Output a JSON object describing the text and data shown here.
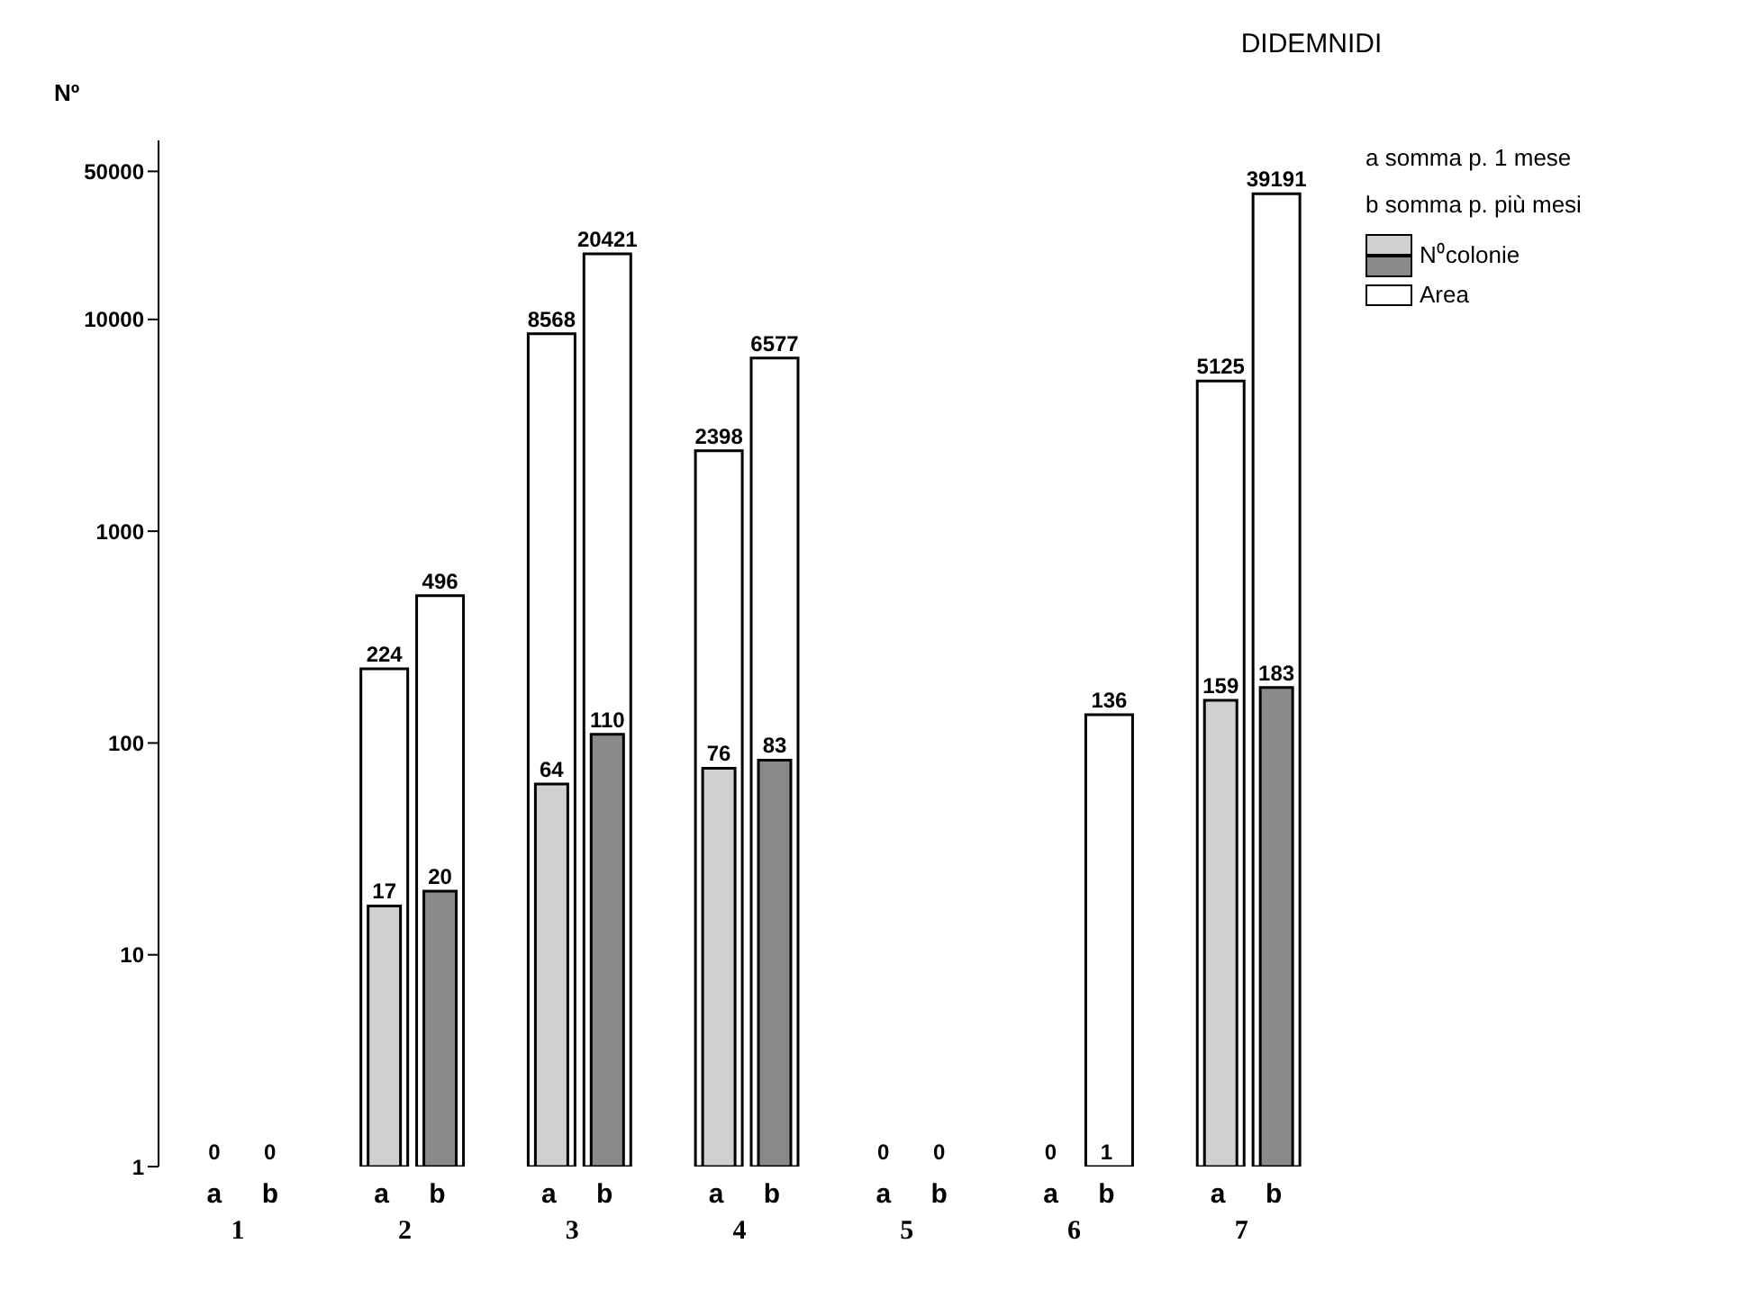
{
  "chart_data": {
    "type": "bar",
    "title": "DIDEMNIDI",
    "ylabel": "Nº",
    "categories": [
      "a",
      "b",
      "a",
      "b",
      "a",
      "b",
      "a",
      "b",
      "a",
      "b",
      "a",
      "b",
      "a",
      "b"
    ],
    "series": [
      {
        "name": "Area",
        "color": "#ffffff",
        "values": [
          null,
          null,
          224,
          496,
          8568,
          20421,
          2398,
          6577,
          null,
          null,
          null,
          136,
          5125,
          39191
        ],
        "value_labels": [
          null,
          null,
          "224",
          "496",
          "8568",
          "20421",
          "2398",
          "6577",
          null,
          null,
          null,
          "136",
          "5125",
          "39191"
        ]
      },
      {
        "name": "N⁰colonie",
        "colors": [
          "#d0d0d0",
          "#8a8a8a",
          "#d0d0d0",
          "#8a8a8a",
          "#d0d0d0",
          "#8a8a8a",
          "#d0d0d0",
          "#8a8a8a",
          "#d0d0d0",
          "#8a8a8a",
          "#d0d0d0",
          "#8a8a8a",
          "#d0d0d0",
          "#8a8a8a"
        ],
        "values": [
          null,
          null,
          17,
          20,
          64,
          110,
          76,
          83,
          null,
          null,
          null,
          1,
          159,
          183
        ],
        "value_labels": [
          "0",
          "0",
          "17",
          "20",
          "64",
          "110",
          "76",
          "83",
          "0",
          "0",
          "0",
          "1",
          "159",
          "183"
        ]
      }
    ],
    "log": "y",
    "ylim": [
      1,
      70000
    ],
    "yticks": [
      1,
      10,
      100,
      1000,
      10000,
      50000
    ],
    "grid": false,
    "legend": "top right",
    "annotations": [
      "a somma p. 1 mese",
      "b somma p. più mesi",
      "1",
      "2",
      "3",
      "4",
      "5",
      "6",
      "7"
    ]
  }
}
